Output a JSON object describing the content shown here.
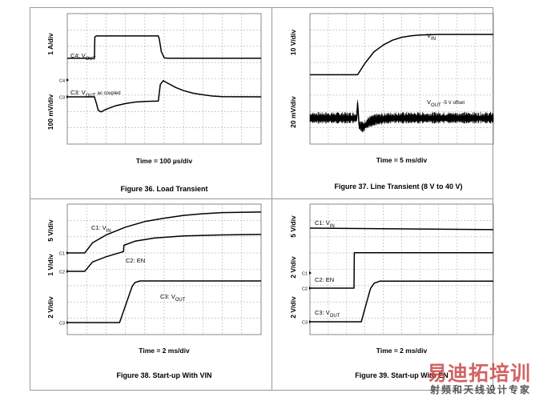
{
  "watermark": {
    "main": "易迪拓培训",
    "sub": "射频和天线设计专家"
  },
  "chart_data": [
    {
      "type": "line",
      "caption": "Figure 36. Load Transient",
      "xlabel": "Time = 100 µs/div",
      "ylabels": [
        "1 A/div",
        "100 mV/div"
      ],
      "channels": [
        {
          "marker": "C4",
          "label": "C4: VOUT",
          "label_html": "C4: V<tspan baseline-shift='sub' font-size='6'>OUT</tspan>",
          "samples": [
            [
              0,
              0.55
            ],
            [
              1.4,
              0.55
            ],
            [
              1.42,
              2.6
            ],
            [
              1.5,
              2.7
            ],
            [
              4.7,
              2.7
            ],
            [
              4.75,
              2.4
            ],
            [
              4.85,
              1.2
            ],
            [
              5,
              0.6
            ],
            [
              5.2,
              0.55
            ],
            [
              10,
              0.55
            ]
          ]
        },
        {
          "marker": "C3",
          "label": "C3: VOUT ac coupled",
          "label_html": "C3: V<tspan baseline-shift='sub' font-size='6'>OUT</tspan> <tspan font-size='6'>ac coupled</tspan>",
          "samples": [
            [
              0,
              0
            ],
            [
              1.4,
              0
            ],
            [
              1.5,
              -0.6
            ],
            [
              1.6,
              -1.3
            ],
            [
              1.75,
              -1.45
            ],
            [
              2,
              -1.2
            ],
            [
              2.5,
              -0.85
            ],
            [
              3,
              -0.65
            ],
            [
              3.5,
              -0.5
            ],
            [
              4,
              -0.45
            ],
            [
              4.7,
              -0.4
            ],
            [
              4.8,
              1.2
            ],
            [
              4.95,
              1.55
            ],
            [
              5.2,
              1.3
            ],
            [
              5.6,
              0.9
            ],
            [
              6,
              0.6
            ],
            [
              6.5,
              0.35
            ],
            [
              7,
              0.2
            ],
            [
              7.5,
              0.08
            ],
            [
              8,
              0.02
            ],
            [
              10,
              0
            ]
          ]
        }
      ]
    },
    {
      "type": "line",
      "caption": "Figure 37. Line Transient (8 V to 40 V)",
      "xlabel": "Time = 5 ms/div",
      "ylabels": [
        "10 V/div",
        "20 mV/div"
      ],
      "channels": [
        {
          "marker": "",
          "label": "VIN",
          "label_html": "V<tspan baseline-shift='sub' font-size='6'>IN</tspan>",
          "samples": [
            [
              0,
              0.8
            ],
            [
              2.6,
              0.8
            ],
            [
              3,
              2
            ],
            [
              3.5,
              3.2
            ],
            [
              4,
              3.9
            ],
            [
              4.5,
              4.4
            ],
            [
              5,
              4.7
            ],
            [
              5.5,
              4.85
            ],
            [
              6,
              4.93
            ],
            [
              7,
              5
            ],
            [
              10,
              5
            ]
          ]
        },
        {
          "marker": "",
          "label": "VOUT -5 V offset",
          "label_html": "V<tspan baseline-shift='sub' font-size='6'>OUT</tspan> <tspan font-size='6'>-5 V offset</tspan>",
          "noise": true,
          "samples": [
            [
              0,
              0
            ],
            [
              2.55,
              0
            ],
            [
              2.6,
              1.5
            ],
            [
              2.68,
              -0.7
            ],
            [
              2.9,
              -0.9
            ],
            [
              3.2,
              -0.4
            ],
            [
              3.6,
              -0.15
            ],
            [
              4.5,
              0
            ],
            [
              10,
              0
            ]
          ]
        }
      ]
    },
    {
      "type": "line",
      "caption": "Figure 38. Start-up With VIN",
      "xlabel": "Time = 2 ms/div",
      "ylabels": [
        "5 V/div",
        "1 V/div",
        "2 V/div"
      ],
      "channels": [
        {
          "marker": "C1",
          "label": "C1: VIN",
          "label_html": "C1: V<tspan baseline-shift='sub' font-size='6'>IN</tspan>",
          "samples": [
            [
              0,
              0
            ],
            [
              0.9,
              0
            ],
            [
              1.3,
              0.9
            ],
            [
              2,
              1.6
            ],
            [
              3,
              2.3
            ],
            [
              4,
              2.8
            ],
            [
              5,
              3.1
            ],
            [
              6,
              3.35
            ],
            [
              7,
              3.5
            ],
            [
              8,
              3.6
            ],
            [
              10,
              3.65
            ]
          ]
        },
        {
          "marker": "C2",
          "label": "C2: EN",
          "label_html": "C2: EN",
          "samples": [
            [
              0,
              0
            ],
            [
              0.9,
              0
            ],
            [
              1.3,
              0.9
            ],
            [
              2,
              1.4
            ],
            [
              2.9,
              1.9
            ],
            [
              2.92,
              2.5
            ],
            [
              3.5,
              2.9
            ],
            [
              4.5,
              3.2
            ],
            [
              6,
              3.4
            ],
            [
              8,
              3.5
            ],
            [
              10,
              3.55
            ]
          ]
        },
        {
          "marker": "C3",
          "label": "C3: VOUT",
          "label_html": "C3: V<tspan baseline-shift='sub' font-size='6'>OUT</tspan>",
          "samples": [
            [
              0,
              0
            ],
            [
              2.7,
              0
            ],
            [
              3.35,
              3.5
            ],
            [
              3.5,
              3.85
            ],
            [
              3.75,
              4
            ],
            [
              10,
              4
            ]
          ]
        }
      ]
    },
    {
      "type": "line",
      "caption": "Figure 39. Start-up With EN",
      "xlabel": "Time = 2 ms/div",
      "ylabels": [
        "5 V/div",
        "2 V/div",
        "2 V/div"
      ],
      "channels": [
        {
          "marker": "C1",
          "label": "C1: VIN",
          "label_html": "C1: V<tspan baseline-shift='sub' font-size='6'>IN</tspan>",
          "samples": [
            [
              0,
              0
            ],
            [
              10,
              -0.15
            ]
          ]
        },
        {
          "marker": "C2",
          "label": "C2: EN",
          "label_html": "C2: EN",
          "samples": [
            [
              0,
              0
            ],
            [
              2.4,
              0
            ],
            [
              2.42,
              3.4
            ],
            [
              10,
              3.4
            ]
          ]
        },
        {
          "marker": "C3",
          "label": "C3: VOUT",
          "label_html": "C3: V<tspan baseline-shift='sub' font-size='6'>OUT</tspan>",
          "samples": [
            [
              0,
              0
            ],
            [
              2.8,
              0
            ],
            [
              3.3,
              3.2
            ],
            [
              3.5,
              3.7
            ],
            [
              3.8,
              3.9
            ],
            [
              10,
              3.9
            ]
          ]
        }
      ]
    }
  ]
}
